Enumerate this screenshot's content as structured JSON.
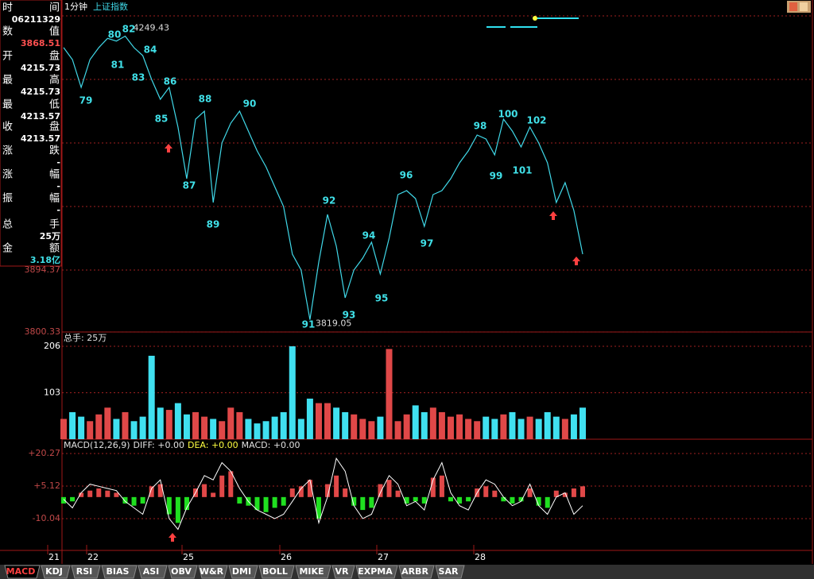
{
  "header": {
    "period": "1分钟",
    "symbol": "上证指数"
  },
  "info_panel": {
    "rows": [
      {
        "left": "时",
        "right": "间",
        "value": "06211329"
      },
      {
        "left": "数",
        "right": "值",
        "value": "3868.51"
      },
      {
        "left": "开",
        "right": "盘",
        "value": "4215.73"
      },
      {
        "left": "最",
        "right": "高",
        "value": "4215.73"
      },
      {
        "left": "最",
        "right": "低",
        "value": "4213.57"
      },
      {
        "left": "收",
        "right": "盘",
        "value": "4213.57"
      },
      {
        "left": "涨",
        "right": "跌",
        "value": "-"
      },
      {
        "left": "涨",
        "right": "幅",
        "value": "-"
      },
      {
        "left": "振",
        "right": "幅",
        "value": "-"
      },
      {
        "left": "总",
        "right": "手",
        "value": "25万"
      },
      {
        "left": "金",
        "right": "额",
        "value": "3.18亿"
      }
    ]
  },
  "chart_data": [
    {
      "type": "line",
      "color": "#40d8e8",
      "values": [
        4232.0,
        4213.9,
        4171.7,
        4213.9,
        4232.0,
        4246.0,
        4242.0,
        4249.43,
        4232.0,
        4219.9,
        4183.7,
        4153.6,
        4171.7,
        4111.4,
        4033.0,
        4123.4,
        4135.5,
        3996.9,
        4087.3,
        4117.4,
        4135.5,
        4105.4,
        4075.2,
        4051.1,
        4020.9,
        3990.8,
        3918.5,
        3894.4,
        3819.05,
        3906.4,
        3978.8,
        3930.5,
        3852.2,
        3894.4,
        3912.5,
        3936.6,
        3888.3,
        3942.6,
        4008.9,
        4014.9,
        4002.9,
        3960.7,
        4008.9,
        4014.9,
        4033.0,
        4057.1,
        4075.2,
        4099.3,
        4093.3,
        4069.2,
        4123.4,
        4105.4,
        4081.2,
        4111.4,
        4087.3,
        4057.1,
        3996.9,
        4027.0,
        3984.8,
        3918.5
      ],
      "ylim": [
        3800.33,
        4288.6
      ],
      "yticks": [
        3800.33,
        3894.37
      ],
      "high_label": 4249.43,
      "low_label": 3819.05,
      "wave_labels": [
        79,
        80,
        81,
        82,
        83,
        84,
        85,
        86,
        87,
        88,
        89,
        90,
        91,
        92,
        93,
        94,
        95,
        96,
        97,
        98,
        99,
        100,
        101,
        102
      ]
    },
    {
      "type": "bar",
      "title": "总手: 25万",
      "up_color": "#e04848",
      "down_color": "#40e0f0",
      "values": [
        45,
        60,
        50,
        40,
        55,
        70,
        45,
        60,
        40,
        50,
        185,
        70,
        65,
        80,
        55,
        60,
        50,
        45,
        40,
        70,
        60,
        45,
        35,
        40,
        50,
        60,
        206,
        45,
        90,
        80,
        80,
        70,
        60,
        55,
        45,
        40,
        50,
        200,
        40,
        55,
        75,
        60,
        70,
        60,
        50,
        55,
        45,
        40,
        50,
        45,
        55,
        60,
        45,
        50,
        45,
        60,
        50,
        45,
        55,
        70
      ],
      "ylim": [
        0,
        237.7
      ],
      "yticks": [
        103,
        206
      ]
    },
    {
      "type": "macd",
      "title": [
        "MACD(12,26,9)",
        "DIFF: +0.00",
        "DEA: +0.00",
        "MACD: +0.00"
      ],
      "pos_color": "#e04848",
      "neg_color": "#20e020",
      "line_color": "#ffffff",
      "values": [
        -3,
        -2,
        2,
        3,
        4,
        3,
        2,
        -3,
        -4,
        -3,
        5,
        6,
        -8,
        -12,
        -6,
        4,
        6,
        2,
        10,
        12,
        -3,
        -4,
        -6,
        -7,
        -5,
        -4,
        4,
        5,
        8,
        -10,
        6,
        10,
        4,
        -4,
        -6,
        -5,
        6,
        8,
        3,
        -3,
        -2,
        -3,
        9,
        10,
        -2,
        -3,
        -2,
        4,
        5,
        3,
        -2,
        -3,
        -2,
        4,
        -4,
        -5,
        3,
        2,
        4,
        5
      ],
      "diff": [
        -1,
        -5,
        2,
        6,
        5,
        4,
        3,
        -2,
        -5,
        -8,
        4,
        8,
        -10,
        -15,
        -5,
        2,
        10,
        8,
        16,
        12,
        4,
        -2,
        -6,
        -8,
        -10,
        -8,
        -2,
        4,
        8,
        -12,
        0,
        18,
        12,
        -4,
        -10,
        -8,
        2,
        10,
        6,
        -4,
        -2,
        -6,
        8,
        16,
        2,
        -4,
        -6,
        2,
        8,
        6,
        0,
        -4,
        -2,
        6,
        -4,
        -8,
        0,
        2,
        -8,
        -4
      ],
      "ylim": [
        -24.8,
        26.9
      ],
      "yticks": [
        {
          "value": -10.04,
          "label": "-10.04"
        },
        {
          "value": 5.12,
          "label": "+5.12"
        },
        {
          "value": 20.27,
          "label": "+20.27"
        }
      ],
      "day_labels": [
        21,
        22,
        25,
        26,
        27,
        28
      ]
    }
  ],
  "tabs": [
    "MACD",
    "KDJ",
    "RSI",
    "BIAS",
    "ASI",
    "OBV",
    "W&R",
    "DMI",
    "BOLL",
    "MIKE",
    "VR",
    "EXPMA",
    "ARBR",
    "SAR"
  ]
}
